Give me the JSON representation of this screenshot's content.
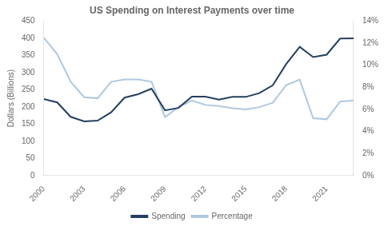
{
  "chart_data": {
    "type": "line",
    "title": "US Spending on Interest Payments over time",
    "x": [
      2000,
      2001,
      2002,
      2003,
      2004,
      2005,
      2006,
      2007,
      2008,
      2009,
      2010,
      2011,
      2012,
      2013,
      2014,
      2015,
      2016,
      2017,
      2018,
      2019,
      2020,
      2021,
      2022,
      2023
    ],
    "series": [
      {
        "name": "Spending",
        "color": "#243F60",
        "axis": "y",
        "values": [
          223,
          213,
          171,
          158,
          160,
          184,
          227,
          237,
          253,
          190,
          197,
          230,
          230,
          221,
          229,
          229,
          240,
          263,
          325,
          375,
          345,
          352,
          399,
          400
        ]
      },
      {
        "name": "Percentage",
        "color": "#AFC8E0",
        "axis": "y2",
        "values": [
          12.5,
          11.0,
          8.5,
          7.1,
          7.0,
          8.5,
          8.7,
          8.7,
          8.5,
          5.3,
          6.2,
          6.8,
          6.4,
          6.3,
          6.1,
          6.0,
          6.2,
          6.6,
          8.2,
          8.7,
          5.2,
          5.1,
          6.7,
          6.8
        ]
      }
    ],
    "ylabel": "Dollars (Billions)",
    "xlim": [
      2000,
      2023
    ],
    "xticks": [
      2000,
      2003,
      2006,
      2009,
      2012,
      2015,
      2018,
      2021
    ],
    "ylim": [
      0,
      450
    ],
    "yticks": [
      0,
      50,
      100,
      150,
      200,
      250,
      300,
      350,
      400,
      450
    ],
    "y2lim": [
      0,
      14
    ],
    "y2ticks": [
      {
        "value": 0,
        "label": "0%"
      },
      {
        "value": 2,
        "label": "2%"
      },
      {
        "value": 4,
        "label": "4%"
      },
      {
        "value": 6,
        "label": "6%"
      },
      {
        "value": 8,
        "label": "8%"
      },
      {
        "value": 10,
        "label": "10%"
      },
      {
        "value": 12,
        "label": "12%"
      },
      {
        "value": 14,
        "label": "14%"
      }
    ],
    "grid": false,
    "legend": "bottom"
  }
}
